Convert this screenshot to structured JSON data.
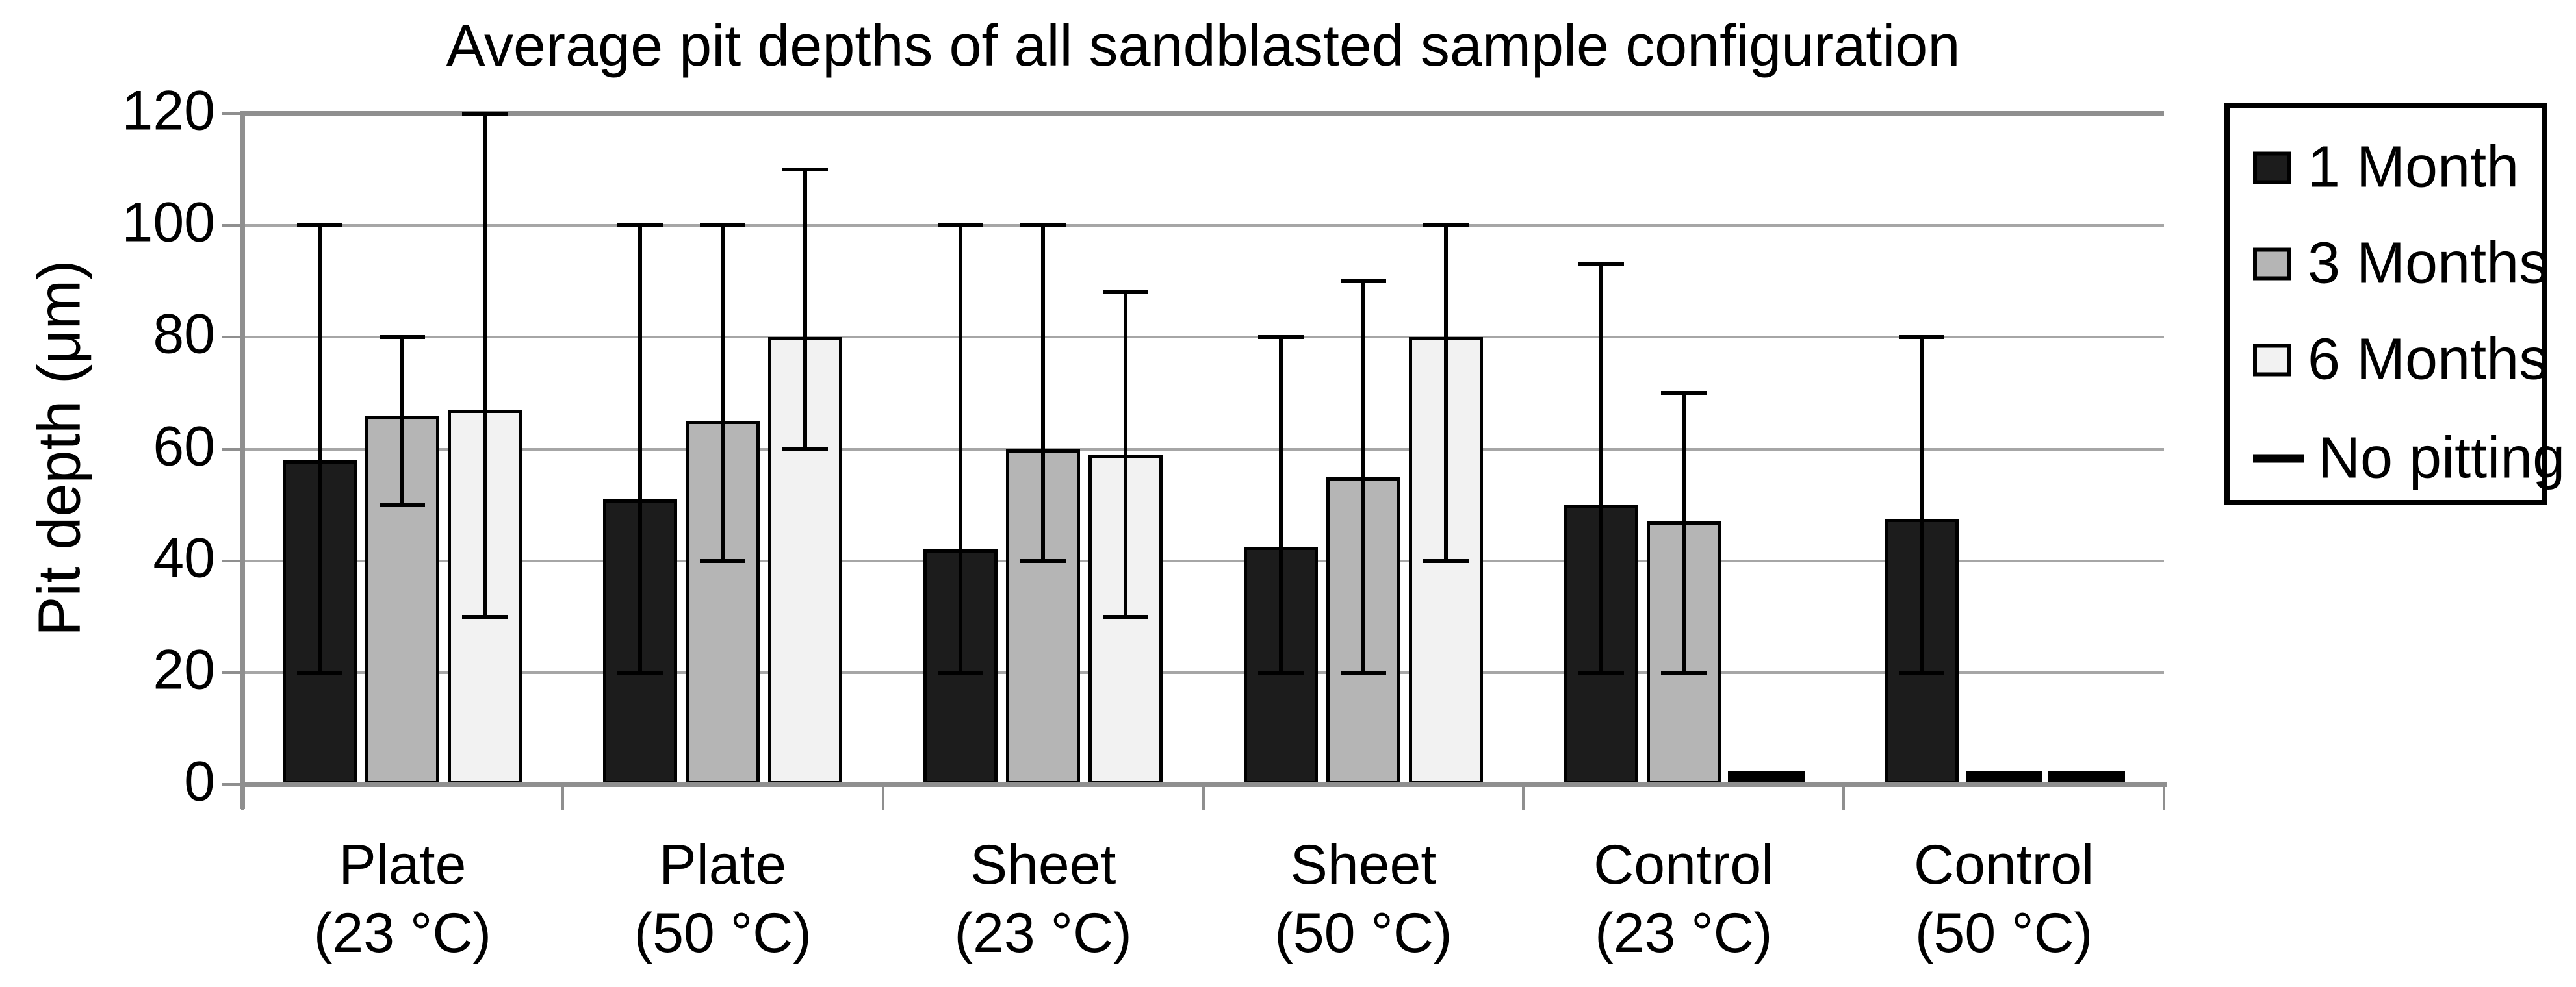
{
  "chart_data": {
    "type": "bar",
    "title": "Average pit depths of all sandblasted sample configuration",
    "ylabel": "Pit depth (μm)",
    "xlabel": "",
    "ylim": [
      0,
      120
    ],
    "yticks": [
      0,
      20,
      40,
      60,
      80,
      100,
      120
    ],
    "grid": "horizontal",
    "legend_position": "right-outside",
    "background_color": "#ffffff",
    "gridline_color": "#a6a6a6",
    "axis_color": "#8f8f8f",
    "error_bar_color": "#000000",
    "categories": [
      {
        "line1": "Plate",
        "line2": "(23 °C)"
      },
      {
        "line1": "Plate",
        "line2": "(50 °C)"
      },
      {
        "line1": "Sheet",
        "line2": "(23 °C)"
      },
      {
        "line1": "Sheet",
        "line2": "(50 °C)"
      },
      {
        "line1": "Control",
        "line2": "(23 °C)"
      },
      {
        "line1": "Control",
        "line2": "(50 °C)"
      }
    ],
    "series": [
      {
        "name": "1 Month",
        "color": "#1c1c1c",
        "values": [
          58,
          51,
          42,
          42.5,
          50,
          47.5
        ],
        "err_low": [
          20,
          20,
          20,
          20,
          20,
          20
        ],
        "err_high": [
          100,
          100,
          100,
          80,
          93,
          80
        ],
        "no_pitting": [
          false,
          false,
          false,
          false,
          false,
          false
        ]
      },
      {
        "name": "3 Months",
        "color": "#b5b5b5",
        "values": [
          66,
          65,
          60,
          55,
          47,
          null
        ],
        "err_low": [
          50,
          40,
          40,
          20,
          20,
          null
        ],
        "err_high": [
          80,
          100,
          100,
          90,
          70,
          null
        ],
        "no_pitting": [
          false,
          false,
          false,
          false,
          false,
          true
        ]
      },
      {
        "name": "6 Months",
        "color": "#f2f2f2",
        "values": [
          67,
          80,
          59,
          80,
          null,
          null
        ],
        "err_low": [
          30,
          60,
          30,
          40,
          null,
          null
        ],
        "err_high": [
          120,
          110,
          88,
          100,
          null,
          null
        ],
        "no_pitting": [
          false,
          false,
          false,
          false,
          true,
          true
        ]
      }
    ],
    "no_pitting_marker_value": 2.5,
    "legend": {
      "items": [
        {
          "label": "1 Month",
          "swatch": "square",
          "color": "#1c1c1c"
        },
        {
          "label": "3 Months",
          "swatch": "square",
          "color": "#b5b5b5"
        },
        {
          "label": "6 Months",
          "swatch": "square",
          "color": "#f2f2f2"
        },
        {
          "label": "No pitting",
          "swatch": "line",
          "color": "#000000"
        }
      ]
    }
  }
}
